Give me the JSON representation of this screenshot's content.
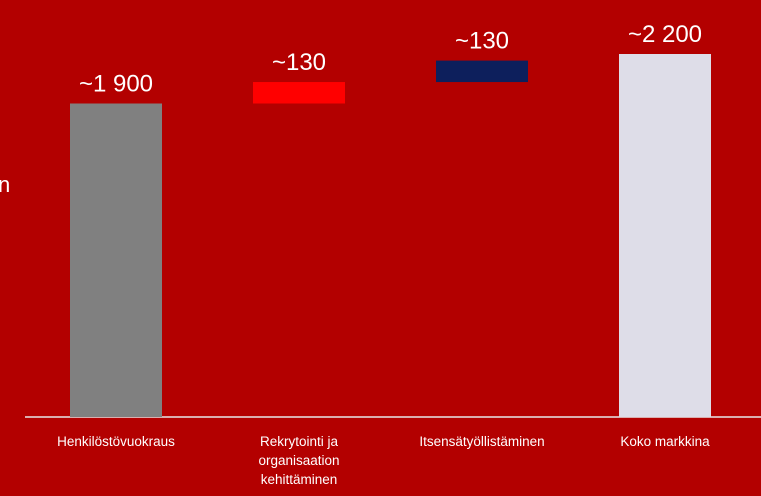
{
  "chart_data": {
    "type": "waterfall",
    "categories": [
      "Henkilöstövuokraus",
      "Rekrytointi ja organisaation kehittäminen",
      "Itsensätyöllistäminen",
      "Koko markkina"
    ],
    "category_lines": [
      [
        "Henkilöstövuokraus"
      ],
      [
        "Rekrytointi ja",
        "organisaation",
        "kehittäminen"
      ],
      [
        "Itsensätyöllistäminen"
      ],
      [
        "Koko markkina"
      ]
    ],
    "values": [
      1900,
      130,
      130,
      2200
    ],
    "bar_start": [
      0,
      1900,
      2030,
      0
    ],
    "bar_end": [
      1900,
      2030,
      2160,
      2200
    ],
    "data_labels": [
      "~1 900",
      "~130",
      "~130",
      "~2 200"
    ],
    "colors": [
      "#808080",
      "#ff0000",
      "#0d1f5c",
      "#dedde8"
    ],
    "ylim": [
      0,
      2200
    ],
    "grid": false
  },
  "edge_text": "n"
}
